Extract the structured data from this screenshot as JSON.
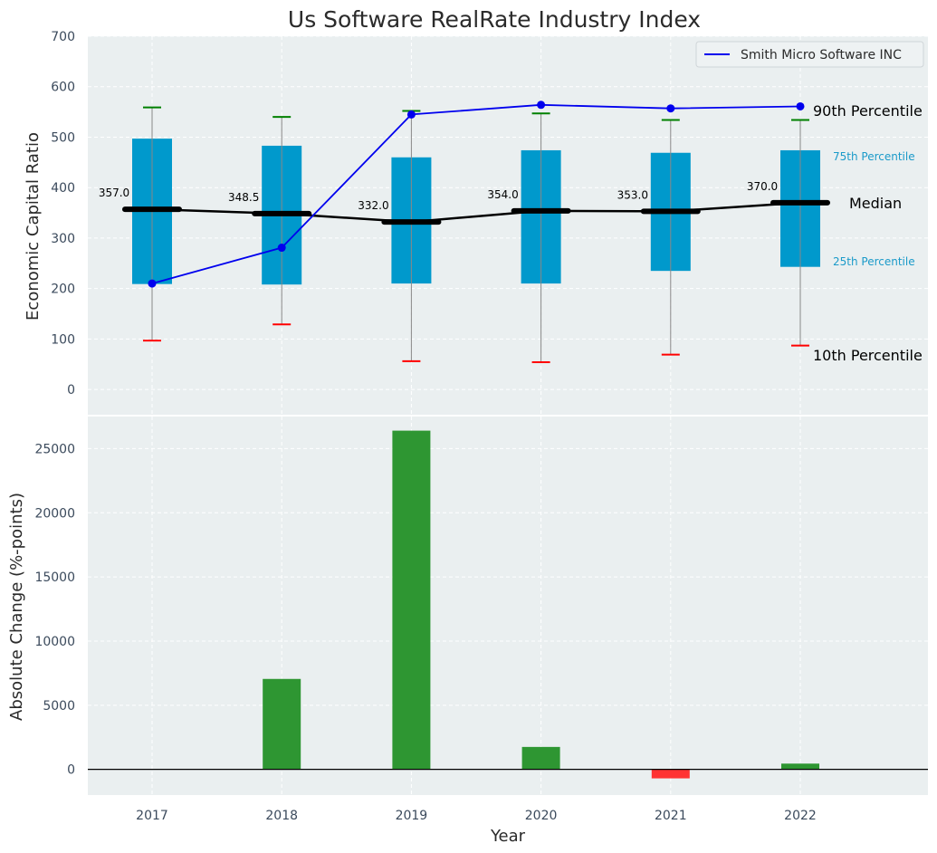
{
  "title": "Us Software RealRate Industry Index",
  "legend": {
    "label": "Smith Micro Software INC"
  },
  "annotations": {
    "p90": "90th Percentile",
    "p75": "75th Percentile",
    "median": "Median",
    "p25": "25th Percentile",
    "p10": "10th Percentile"
  },
  "colors": {
    "box": "#0099cc",
    "company_line": "#0000ee",
    "median_line": "#000000",
    "whisker_top": "#008000",
    "whisker_bottom": "#ff0000",
    "bar_positive": "#2e9632",
    "bar_negative": "#ff3333",
    "plot_background": "#eaeff0"
  },
  "chart_data": [
    {
      "type": "box",
      "ylabel": "Economic Capital Ratio",
      "ylim": [
        -50,
        700
      ],
      "yticks": [
        0,
        100,
        200,
        300,
        400,
        500,
        600,
        700
      ],
      "grid": true,
      "legend_position": "top-right",
      "categories": [
        "2017",
        "2018",
        "2019",
        "2020",
        "2021",
        "2022"
      ],
      "p10": [
        97,
        129,
        56,
        54,
        69,
        87
      ],
      "p25": [
        209,
        208,
        210,
        210,
        235,
        243
      ],
      "median": [
        357.0,
        348.5,
        332.0,
        354.0,
        353.0,
        370.0
      ],
      "median_labels": [
        "357.0",
        "348.5",
        "332.0",
        "354.0",
        "353.0",
        "370.0"
      ],
      "p75": [
        497,
        483,
        460,
        474,
        469,
        474
      ],
      "p90": [
        559,
        540,
        552,
        547,
        534,
        534
      ],
      "series": [
        {
          "name": "Smith Micro Software INC",
          "values": [
            210,
            281,
            545,
            564,
            557,
            561
          ]
        }
      ]
    },
    {
      "type": "bar",
      "xlabel": "Year",
      "ylabel": "Absolute Change (%-points)",
      "ylim": [
        -2000,
        27500
      ],
      "yticks": [
        0,
        5000,
        10000,
        15000,
        20000,
        25000
      ],
      "grid": true,
      "categories": [
        "2017",
        "2018",
        "2019",
        "2020",
        "2021",
        "2022"
      ],
      "values": [
        0,
        7050,
        26400,
        1750,
        -700,
        450
      ]
    }
  ]
}
